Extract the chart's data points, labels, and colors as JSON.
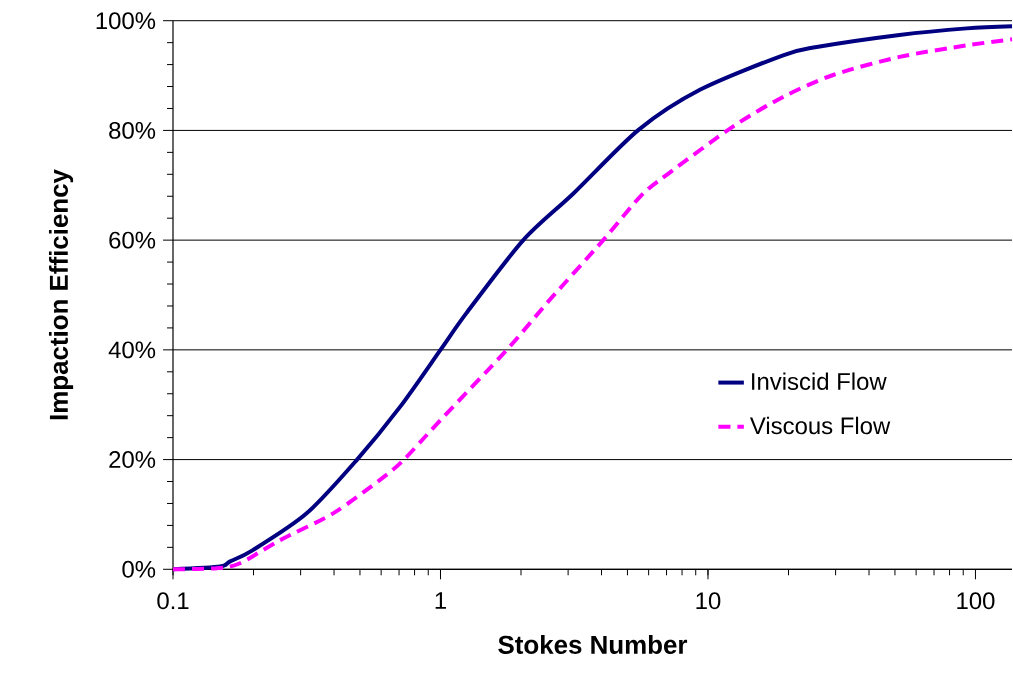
{
  "chart_data": {
    "type": "line",
    "xlabel": "Stokes Number",
    "ylabel": "Impaction Efficiency",
    "log": "x",
    "xlim": [
      0.1,
      137
    ],
    "xticks": [
      0.1,
      1,
      10,
      100
    ],
    "ylim": [
      0,
      100
    ],
    "yticks": [
      {
        "value": 0,
        "label": "0%"
      },
      {
        "value": 20,
        "label": "20%"
      },
      {
        "value": 40,
        "label": "40%"
      },
      {
        "value": 60,
        "label": "60%"
      },
      {
        "value": 80,
        "label": "80%"
      },
      {
        "value": 100,
        "label": "100%"
      }
    ],
    "grid": "y",
    "legend": "right",
    "marker": "none",
    "series": [
      {
        "name": "Inviscid Flow",
        "color": "#000080",
        "line_style": "solid",
        "x": [
          0.1,
          0.15,
          0.163,
          0.199,
          0.316,
          0.486,
          0.706,
          1.0,
          1.25,
          2.04,
          3.14,
          5.5,
          9.33,
          19.1,
          25.5,
          52,
          92.7,
          137
        ],
        "values": [
          0,
          0.5,
          1.4,
          3.5,
          10.2,
          19.9,
          29.6,
          40,
          46.7,
          60,
          68.5,
          80.1,
          87.4,
          93.7,
          95.2,
          97.4,
          98.6,
          99.0
        ]
      },
      {
        "name": "Viscous Flow",
        "color": "#ff00ff",
        "line_style": "dashed",
        "x": [
          0.1,
          0.146,
          0.178,
          0.251,
          0.397,
          0.594,
          0.727,
          1.0,
          1.77,
          2.56,
          4.06,
          5.57,
          7.01,
          12.4,
          19.1,
          29.4,
          52,
          92.7,
          137
        ],
        "values": [
          0,
          0.2,
          1.1,
          5.3,
          10.2,
          16.3,
          19.9,
          27.2,
          40,
          49.1,
          60,
          67.9,
          71.9,
          80.7,
          86.1,
          90.1,
          93.4,
          95.5,
          96.6
        ]
      }
    ]
  }
}
